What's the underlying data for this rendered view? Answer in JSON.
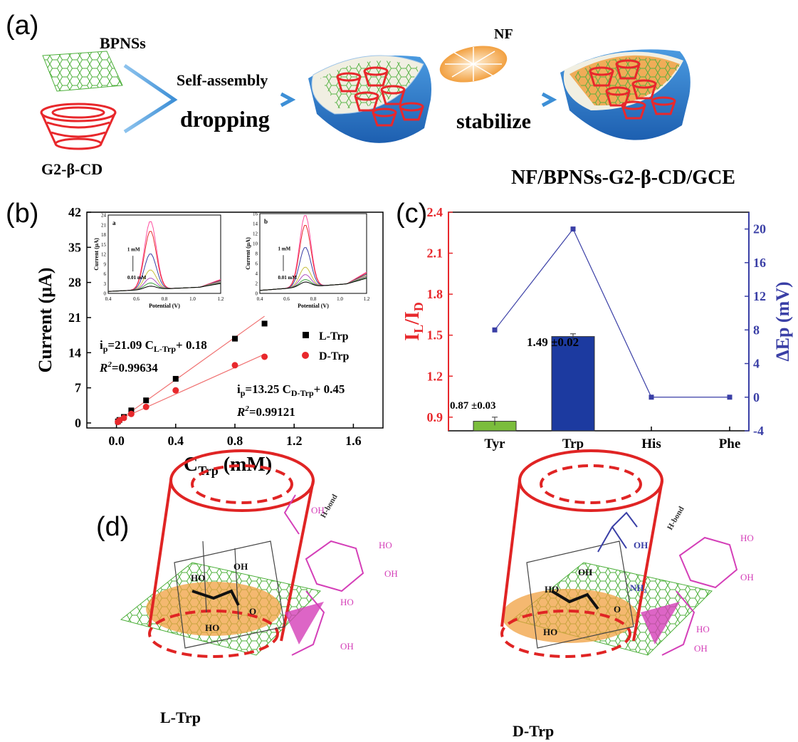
{
  "panel_a": {
    "label": "(a)",
    "bpnss": "BPNSs",
    "g2": "G2-β-CD",
    "self_assembly": "Self-assembly",
    "dropping": "dropping",
    "nf": "NF",
    "stabilize": "stabilize",
    "electrode": "NF/BPNSs-G2-β-CD/GCE"
  },
  "panel_b": {
    "label": "(b)",
    "eq1_main": "i",
    "eq1_sub": "p",
    "eq1_rest": "=21.09 C",
    "eq1_sub2": "L-Trp",
    "eq1_tail": "+ 0.18",
    "r2_1": "=0.99634",
    "eq2_main": "i",
    "eq2_sub": "p",
    "eq2_rest": "=13.25 C",
    "eq2_sub2": "D-Trp",
    "eq2_tail": "+ 0.45",
    "r2_2": "=0.99121",
    "inset_a": {
      "letter": "a",
      "top": "1 mM",
      "bottom": "0.01 mM",
      "ylabel": "Current (μA)",
      "xlabel": "Potential (V)"
    },
    "inset_b": {
      "letter": "b",
      "top": "1 mM",
      "bottom": "0.01 mM",
      "ylabel": "Current (μA)",
      "xlabel": "Potential (V)"
    }
  },
  "panel_c": {
    "label": "(c)",
    "bar1_label": "0.87 ±0.03",
    "bar2_label": "1.49 ±0.02"
  },
  "panel_d": {
    "label": "(d)",
    "l_trp": "L-Trp",
    "d_trp": "D-Trp",
    "hbond": "H-bond",
    "oh": "OH",
    "ho": "HO",
    "o": "O",
    "nh2": "NH₂"
  },
  "colors": {
    "red": "#e8282c",
    "blue": "#3a3fa6",
    "green": "#7bbd3c",
    "navy": "#1c3aa0",
    "orange": "#f0a040"
  },
  "chart_data": [
    {
      "type": "scatter",
      "id": "b-main",
      "xlabel": "C",
      "xlabel_sub": "Trp",
      "xlabel_unit": " (mM)",
      "ylabel": "Current (μA)",
      "xlim": [
        -0.2,
        1.8
      ],
      "ylim": [
        -1,
        42
      ],
      "xticks": [
        "0.0",
        "0.4",
        "0.8",
        "1.2",
        "1.6"
      ],
      "yticks": [
        "0",
        "7",
        "14",
        "21",
        "28",
        "35",
        "42"
      ],
      "legend": [
        "L-Trp",
        "D-Trp"
      ],
      "series": [
        {
          "name": "L-Trp",
          "color": "#000000",
          "marker": "square",
          "x": [
            0.01,
            0.02,
            0.05,
            0.1,
            0.2,
            0.4,
            0.8,
            1.0
          ],
          "y": [
            0.3,
            0.6,
            1.2,
            2.5,
            4.5,
            8.8,
            16.8,
            19.8
          ],
          "fit": {
            "slope": 21.09,
            "intercept": 0.18
          }
        },
        {
          "name": "D-Trp",
          "color": "#e8282c",
          "marker": "circle",
          "x": [
            0.01,
            0.02,
            0.05,
            0.1,
            0.2,
            0.4,
            0.8,
            1.0
          ],
          "y": [
            0.2,
            0.5,
            1.0,
            1.8,
            3.2,
            6.5,
            11.5,
            13.2
          ],
          "fit": {
            "slope": 13.25,
            "intercept": 0.45
          }
        }
      ]
    },
    {
      "type": "line",
      "id": "b-inset-a",
      "xlim": [
        0.4,
        1.2
      ],
      "ylim": [
        0,
        24
      ],
      "xticks": [
        "0.4",
        "0.6",
        "0.8",
        "1.0",
        "1.2"
      ],
      "yticks": [
        "0",
        "3",
        "6",
        "9",
        "12",
        "15",
        "18",
        "21",
        "24"
      ],
      "peaks": [
        21,
        18,
        11,
        6,
        3.5,
        2,
        1
      ],
      "colors": [
        "#ff4fa0",
        "#e8282c",
        "#3a3fa6",
        "#c8c040",
        "#b050c0",
        "#40a040",
        "#000000"
      ],
      "peak_x": 0.7
    },
    {
      "type": "line",
      "id": "b-inset-b",
      "xlim": [
        0.4,
        1.2
      ],
      "ylim": [
        0,
        16
      ],
      "xticks": [
        "0.4",
        "0.6",
        "0.8",
        "1.0",
        "1.2"
      ],
      "yticks": [
        "0",
        "2",
        "4",
        "6",
        "8",
        "10",
        "12",
        "14",
        "16"
      ],
      "peaks": [
        14.5,
        12.5,
        8,
        4,
        2.5,
        1.5,
        1
      ],
      "colors": [
        "#ff4fa0",
        "#e8282c",
        "#3a3fa6",
        "#c8c040",
        "#b050c0",
        "#40a040",
        "#000000"
      ],
      "peak_x": 0.74
    },
    {
      "type": "bar",
      "id": "c",
      "categories": [
        "Tyr",
        "Trp",
        "His",
        "Phe"
      ],
      "ylabel": "I",
      "ylabel_sub1": "L",
      "ylabel_sep": "/I",
      "ylabel_sub2": "D",
      "ylim": [
        0.8,
        2.4
      ],
      "yticks": [
        "0.9",
        "1.2",
        "1.5",
        "1.8",
        "2.1",
        "2.4"
      ],
      "bars": [
        {
          "value": 0.87,
          "err": 0.03,
          "color": "#7bbd3c"
        },
        {
          "value": 1.49,
          "err": 0.02,
          "color": "#1c3aa0"
        }
      ],
      "y2label": "ΔEp (mV)",
      "y2lim": [
        -4,
        22
      ],
      "y2ticks": [
        "-4",
        "0",
        "4",
        "8",
        "12",
        "16",
        "20"
      ],
      "line": {
        "name": "ΔEp",
        "values": [
          8,
          20,
          0,
          0
        ],
        "color": "#3a3fa6"
      }
    }
  ]
}
